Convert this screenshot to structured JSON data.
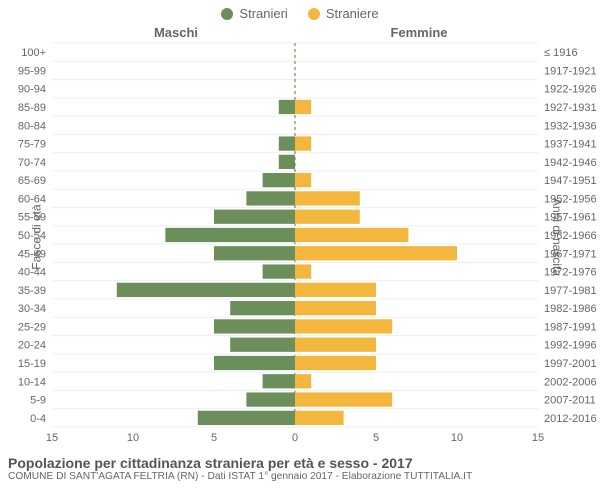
{
  "legend": {
    "male": {
      "label": "Stranieri",
      "color": "#6b8e5a"
    },
    "female": {
      "label": "Straniere",
      "color": "#f3b73e"
    }
  },
  "headers": {
    "left": "Maschi",
    "right": "Femmine"
  },
  "axis_titles": {
    "left": "Fasce di età",
    "right": "Anni di nascita"
  },
  "x_axis": {
    "min": -15,
    "max": 15,
    "ticks": [
      -15,
      -10,
      -5,
      0,
      5,
      10,
      15
    ],
    "tick_labels": [
      "15",
      "10",
      "5",
      "0",
      "5",
      "10",
      "15"
    ]
  },
  "colors": {
    "grid": "#eceff1",
    "center_line": "#7e8a52",
    "tick_text": "#666666",
    "background": "#ffffff"
  },
  "bar": {
    "height_ratio": 0.78
  },
  "rows": [
    {
      "age": "100+",
      "birth": "≤ 1916",
      "m": 0,
      "f": 0
    },
    {
      "age": "95-99",
      "birth": "1917-1921",
      "m": 0,
      "f": 0
    },
    {
      "age": "90-94",
      "birth": "1922-1926",
      "m": 0,
      "f": 0
    },
    {
      "age": "85-89",
      "birth": "1927-1931",
      "m": 1,
      "f": 1
    },
    {
      "age": "80-84",
      "birth": "1932-1936",
      "m": 0,
      "f": 0
    },
    {
      "age": "75-79",
      "birth": "1937-1941",
      "m": 1,
      "f": 1
    },
    {
      "age": "70-74",
      "birth": "1942-1946",
      "m": 1,
      "f": 0
    },
    {
      "age": "65-69",
      "birth": "1947-1951",
      "m": 2,
      "f": 1
    },
    {
      "age": "60-64",
      "birth": "1952-1956",
      "m": 3,
      "f": 4
    },
    {
      "age": "55-59",
      "birth": "1957-1961",
      "m": 5,
      "f": 4
    },
    {
      "age": "50-54",
      "birth": "1962-1966",
      "m": 8,
      "f": 7
    },
    {
      "age": "45-49",
      "birth": "1967-1971",
      "m": 5,
      "f": 10
    },
    {
      "age": "40-44",
      "birth": "1972-1976",
      "m": 2,
      "f": 1
    },
    {
      "age": "35-39",
      "birth": "1977-1981",
      "m": 11,
      "f": 5
    },
    {
      "age": "30-34",
      "birth": "1982-1986",
      "m": 4,
      "f": 5
    },
    {
      "age": "25-29",
      "birth": "1987-1991",
      "m": 5,
      "f": 6
    },
    {
      "age": "20-24",
      "birth": "1992-1996",
      "m": 4,
      "f": 5
    },
    {
      "age": "15-19",
      "birth": "1997-2001",
      "m": 5,
      "f": 5
    },
    {
      "age": "10-14",
      "birth": "2002-2006",
      "m": 2,
      "f": 1
    },
    {
      "age": "5-9",
      "birth": "2007-2011",
      "m": 3,
      "f": 6
    },
    {
      "age": "0-4",
      "birth": "2012-2016",
      "m": 6,
      "f": 3
    }
  ],
  "footer": {
    "title": "Popolazione per cittadinanza straniera per età e sesso - 2017",
    "subtitle": "COMUNE DI SANT'AGATA FELTRIA (RN) - Dati ISTAT 1° gennaio 2017 - Elaborazione TUTTITALIA.IT"
  }
}
